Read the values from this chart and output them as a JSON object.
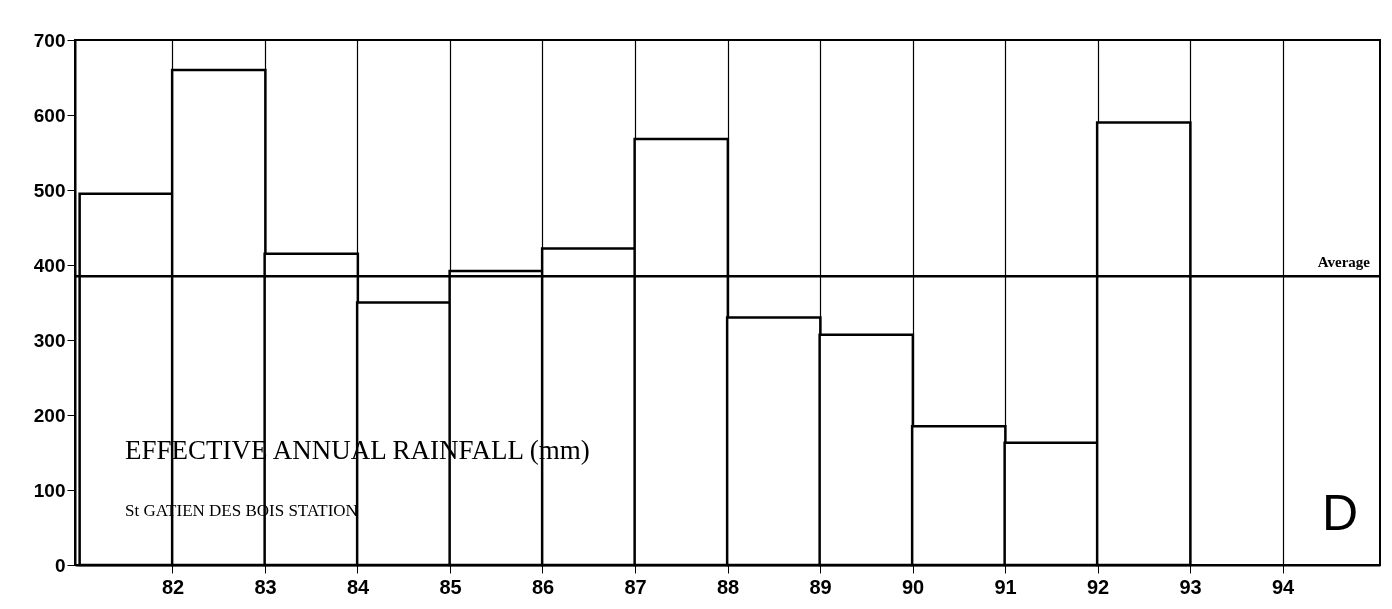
{
  "chart_data": {
    "type": "bar",
    "title": "EFFECTIVE ANNUAL RAINFALL (mm)",
    "subtitle": "St GATIEN DES BOIS STATION",
    "annotations": [
      "D"
    ],
    "x": [
      81.5,
      82.5,
      83.5,
      84.5,
      85.5,
      86.5,
      87.5,
      88.5,
      89.5,
      90.5,
      91.5,
      92.5
    ],
    "values": [
      495,
      660,
      415,
      350,
      392,
      422,
      568,
      330,
      307,
      185,
      163,
      590
    ],
    "color": "#000000",
    "xlim": [
      81,
      95
    ],
    "xticks": [
      82,
      83,
      84,
      85,
      86,
      87,
      88,
      89,
      90,
      91,
      92,
      93,
      94
    ],
    "ylim": [
      0,
      700
    ],
    "yticks": [
      0,
      100,
      200,
      300,
      400,
      500,
      600,
      700
    ],
    "grid": "x",
    "ref_lines": [
      {
        "axis": "y",
        "value": 385,
        "label": "Average"
      }
    ]
  }
}
